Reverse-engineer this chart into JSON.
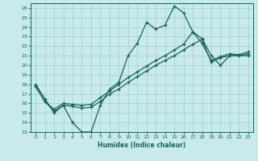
{
  "xlabel": "Humidex (Indice chaleur)",
  "background_color": "#c8eaea",
  "grid_color": "#a0cccc",
  "line_color": "#1a6060",
  "xlim": [
    -0.5,
    23.5
  ],
  "ylim": [
    13,
    26.5
  ],
  "yticks": [
    13,
    14,
    15,
    16,
    17,
    18,
    19,
    20,
    21,
    22,
    23,
    24,
    25,
    26
  ],
  "xticks": [
    0,
    1,
    2,
    3,
    4,
    5,
    6,
    7,
    8,
    9,
    10,
    11,
    12,
    13,
    14,
    15,
    16,
    17,
    18,
    19,
    20,
    21,
    22,
    23
  ],
  "line1_x": [
    0,
    1,
    2,
    3,
    4,
    5,
    6,
    7,
    8,
    9,
    10,
    11,
    12,
    13,
    14,
    15,
    16,
    17,
    18,
    19,
    20,
    21,
    22,
    23
  ],
  "line1_y": [
    18,
    16.5,
    15,
    15.8,
    14,
    13,
    13,
    15.8,
    17.5,
    18.2,
    21,
    22.3,
    24.5,
    23.8,
    24.2,
    26.2,
    25.5,
    23.5,
    22.8,
    21,
    20,
    21,
    21,
    21
  ],
  "line2_x": [
    0,
    1,
    2,
    3,
    4,
    5,
    6,
    7,
    8,
    9,
    10,
    11,
    12,
    13,
    14,
    15,
    16,
    17,
    18,
    19,
    20,
    21,
    22,
    23
  ],
  "line2_y": [
    17.8,
    16.2,
    15.2,
    15.8,
    15.7,
    15.5,
    15.6,
    16.2,
    17.0,
    17.5,
    18.2,
    18.8,
    19.4,
    20.0,
    20.5,
    21.0,
    21.6,
    22.2,
    22.7,
    20.3,
    20.8,
    21.0,
    21.0,
    21.2
  ],
  "line3_x": [
    0,
    1,
    2,
    3,
    4,
    5,
    6,
    7,
    8,
    9,
    10,
    11,
    12,
    13,
    14,
    15,
    16,
    17,
    18,
    19,
    20,
    21,
    22,
    23
  ],
  "line3_y": [
    17.8,
    16.2,
    15.4,
    16.0,
    15.9,
    15.8,
    15.9,
    16.6,
    17.3,
    18.0,
    18.7,
    19.3,
    19.9,
    20.5,
    21.0,
    21.6,
    22.2,
    23.5,
    22.3,
    20.5,
    20.9,
    21.2,
    21.1,
    21.4
  ]
}
